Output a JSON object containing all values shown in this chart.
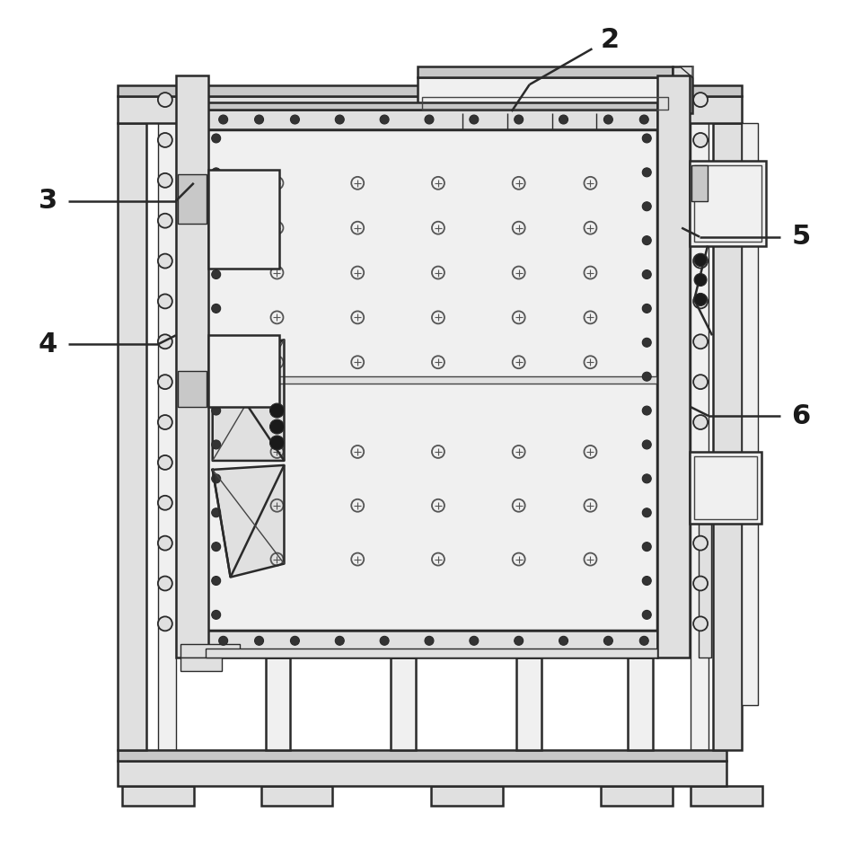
{
  "bg_color": "#ffffff",
  "lc": "#2a2a2a",
  "lc_thin": "#444444",
  "fl": "#e0e0e0",
  "fm": "#c8c8c8",
  "flt": "#f0f0f0",
  "label_fontsize": 22,
  "label_fontweight": "bold",
  "label_color": "#1a1a1a"
}
